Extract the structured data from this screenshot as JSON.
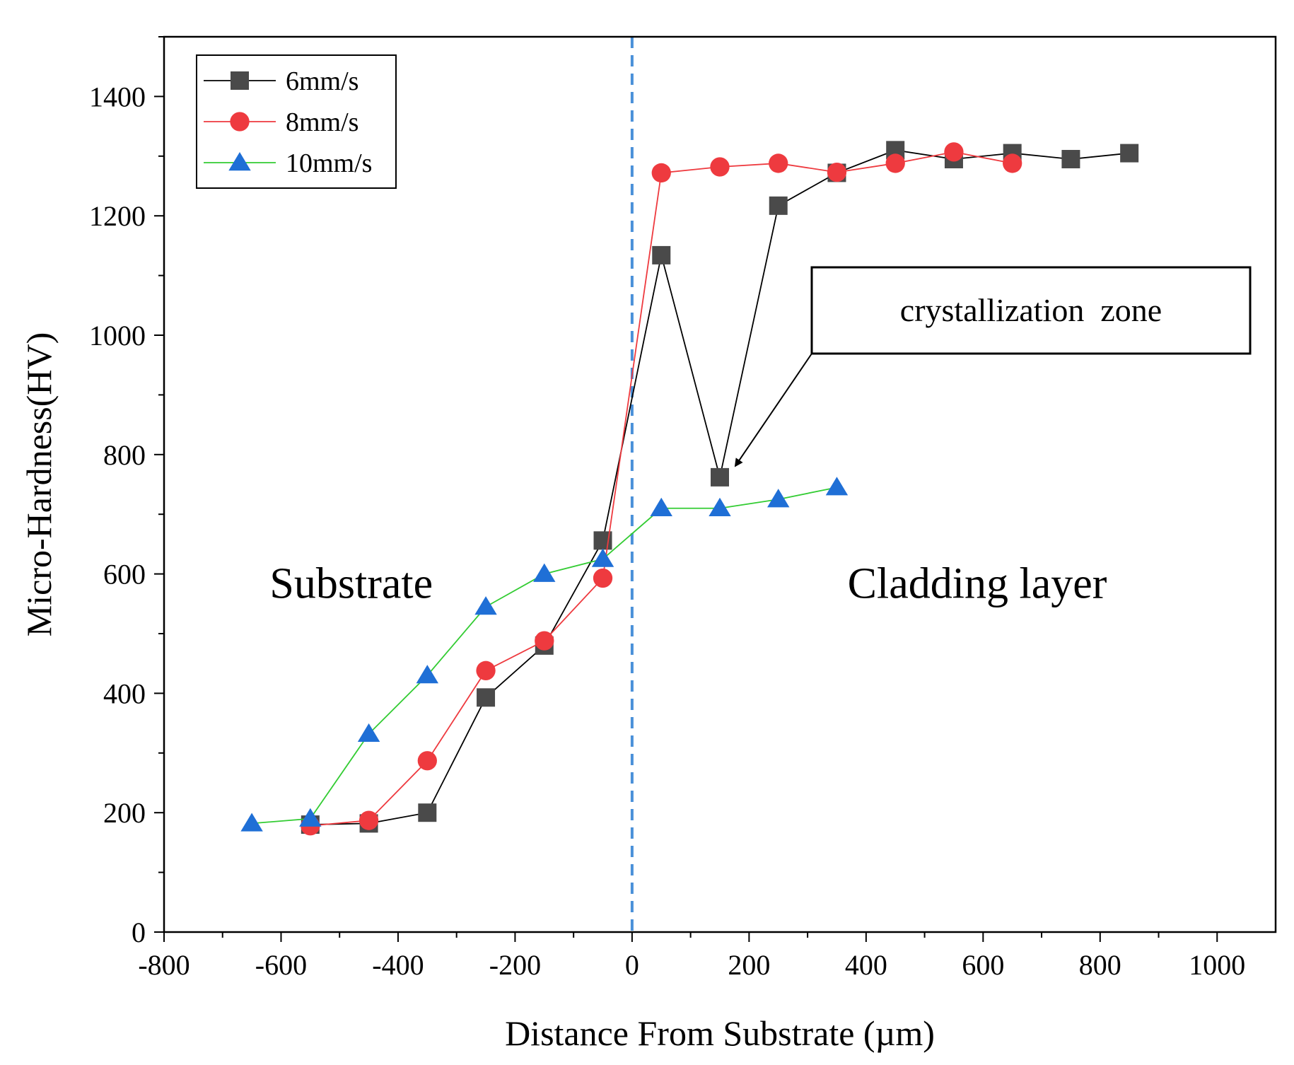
{
  "chart_data": {
    "type": "line",
    "title": "",
    "xlabel": "Distance From Substrate (µm)",
    "ylabel": "Micro-Hardness(HV)",
    "xlim": [
      -800,
      1100
    ],
    "ylim": [
      0,
      1500
    ],
    "xticks": [
      -800,
      -600,
      -400,
      -200,
      0,
      200,
      400,
      600,
      800,
      1000
    ],
    "xtick_labels": [
      "-800",
      "-600",
      "-400",
      "-200",
      "0",
      "200",
      "400",
      "600",
      "800",
      "1000"
    ],
    "yticks": [
      0,
      200,
      400,
      600,
      800,
      1000,
      1200,
      1400
    ],
    "ytick_labels": [
      "0",
      "200",
      "400",
      "600",
      "800",
      "1000",
      "1200",
      "1400"
    ],
    "legend_position": "top-left",
    "reference_line": {
      "x": 0,
      "style": "dashed",
      "color": "#4a90d9"
    },
    "series": [
      {
        "name": "6mm/s",
        "marker": "square",
        "color": "#4a4a4a",
        "line_color": "#000000",
        "x": [
          -550,
          -450,
          -350,
          -250,
          -150,
          -50,
          50,
          150,
          250,
          350,
          450,
          550,
          650,
          750,
          850
        ],
        "values": [
          180,
          182,
          200,
          393,
          480,
          656,
          1134,
          762,
          1217,
          1272,
          1310,
          1295,
          1305,
          1295,
          1305
        ]
      },
      {
        "name": "8mm/s",
        "marker": "circle",
        "color": "#ee3a3f",
        "line_color": "#ee3a3f",
        "x": [
          -550,
          -450,
          -350,
          -250,
          -150,
          -50,
          50,
          150,
          250,
          350,
          450,
          550,
          650
        ],
        "values": [
          178,
          187,
          287,
          438,
          488,
          593,
          1272,
          1282,
          1288,
          1273,
          1288,
          1307,
          1288
        ]
      },
      {
        "name": "10mm/s",
        "marker": "triangle",
        "color": "#1f6fd6",
        "line_color": "#33cc33",
        "x": [
          -650,
          -550,
          -450,
          -350,
          -250,
          -150,
          -50,
          50,
          150,
          250,
          350
        ],
        "values": [
          182,
          190,
          332,
          430,
          545,
          600,
          625,
          710,
          710,
          725,
          745
        ]
      }
    ],
    "annotations": [
      {
        "text": "Substrate"
      },
      {
        "text": "Cladding layer"
      },
      {
        "text": "crystallization  zone",
        "points_to": {
          "x": 150,
          "y": 762
        }
      }
    ]
  }
}
